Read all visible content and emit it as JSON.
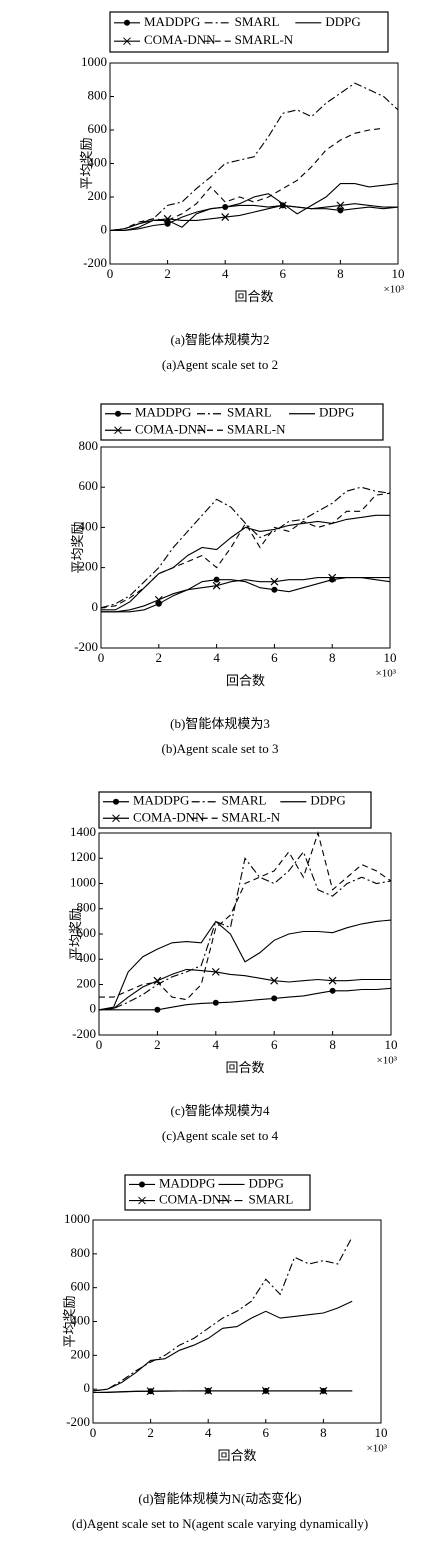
{
  "chart_data": [
    {
      "type": "line",
      "y_label": "平均奖励",
      "x_label": "回合数",
      "x_unit": "×10³",
      "caption": "(a)智能体规模为2",
      "caption_en": "(a)Agent scale set to 2",
      "x": [
        0,
        0.5,
        1,
        1.5,
        2,
        2.5,
        3,
        3.5,
        4,
        4.5,
        5,
        5.5,
        6,
        6.5,
        7,
        7.5,
        8,
        8.5,
        9,
        9.5,
        10
      ],
      "xlim": [
        0,
        10
      ],
      "xticks": [
        0,
        2,
        4,
        6,
        8,
        10
      ],
      "ylim": [
        -200,
        1000
      ],
      "yticks": [
        -200,
        0,
        200,
        400,
        600,
        800,
        1000
      ],
      "series": [
        {
          "name": "MADDPG",
          "color": "#000000",
          "dash": "solid",
          "marker": "circle",
          "values": [
            0,
            0,
            10,
            30,
            40,
            80,
            110,
            130,
            140,
            150,
            150,
            140,
            150,
            140,
            130,
            130,
            120,
            130,
            140,
            130,
            140
          ]
        },
        {
          "name": "SMARL",
          "color": "#000000",
          "dash": "dashdot",
          "marker": "none",
          "values": [
            0,
            10,
            40,
            70,
            150,
            170,
            250,
            320,
            400,
            420,
            440,
            560,
            700,
            720,
            680,
            760,
            820,
            880,
            840,
            800,
            720
          ]
        },
        {
          "name": "DDPG",
          "color": "#000000",
          "dash": "solid",
          "marker": "none",
          "values": [
            0,
            0,
            20,
            60,
            60,
            20,
            100,
            130,
            140,
            160,
            200,
            220,
            160,
            100,
            150,
            200,
            280,
            280,
            260,
            270,
            280
          ]
        },
        {
          "name": "COMA-DNN",
          "color": "#000000",
          "dash": "solid",
          "marker": "x",
          "values": [
            0,
            10,
            40,
            60,
            70,
            60,
            60,
            70,
            80,
            90,
            110,
            130,
            150,
            140,
            130,
            140,
            150,
            160,
            150,
            140,
            140
          ]
        },
        {
          "name": "SMARL-N",
          "color": "#000000",
          "dash": "dash",
          "marker": "none",
          "values": [
            0,
            10,
            50,
            70,
            60,
            100,
            160,
            260,
            170,
            200,
            170,
            200,
            250,
            300,
            380,
            480,
            540,
            580,
            600,
            610,
            null
          ]
        }
      ]
    },
    {
      "type": "line",
      "y_label": "平均奖励",
      "x_label": "回合数",
      "x_unit": "×10³",
      "caption": "(b)智能体规模为3",
      "caption_en": "(b)Agent scale set to 3",
      "x": [
        0,
        0.5,
        1,
        1.5,
        2,
        2.5,
        3,
        3.5,
        4,
        4.5,
        5,
        5.5,
        6,
        6.5,
        7,
        7.5,
        8,
        8.5,
        9,
        9.5,
        10
      ],
      "xlim": [
        0,
        10
      ],
      "xticks": [
        0,
        2,
        4,
        6,
        8,
        10
      ],
      "ylim": [
        -200,
        800
      ],
      "yticks": [
        -200,
        0,
        200,
        400,
        600,
        800
      ],
      "series": [
        {
          "name": "MADDPG",
          "color": "#000000",
          "dash": "solid",
          "marker": "circle",
          "values": [
            -20,
            -20,
            -20,
            -10,
            20,
            60,
            90,
            130,
            140,
            140,
            130,
            100,
            90,
            80,
            100,
            120,
            140,
            150,
            150,
            140,
            130
          ]
        },
        {
          "name": "SMARL",
          "color": "#000000",
          "dash": "dashdot",
          "marker": "none",
          "values": [
            0,
            20,
            60,
            130,
            200,
            300,
            380,
            460,
            540,
            500,
            420,
            350,
            380,
            430,
            440,
            480,
            520,
            580,
            600,
            580,
            570
          ]
        },
        {
          "name": "DDPG",
          "color": "#000000",
          "dash": "solid",
          "marker": "none",
          "values": [
            -10,
            -10,
            30,
            100,
            170,
            200,
            260,
            300,
            290,
            350,
            400,
            380,
            390,
            410,
            420,
            430,
            420,
            440,
            450,
            460,
            460
          ]
        },
        {
          "name": "COMA-DNN",
          "color": "#000000",
          "dash": "solid",
          "marker": "x",
          "values": [
            -20,
            -20,
            -10,
            10,
            40,
            70,
            90,
            100,
            110,
            130,
            140,
            130,
            130,
            140,
            140,
            150,
            150,
            150,
            150,
            150,
            150
          ]
        },
        {
          "name": "SMARL-N",
          "color": "#000000",
          "dash": "dash",
          "marker": "none",
          "values": [
            0,
            10,
            50,
            100,
            170,
            200,
            230,
            260,
            200,
            300,
            420,
            300,
            400,
            380,
            430,
            400,
            420,
            480,
            480,
            560,
            570
          ]
        }
      ]
    },
    {
      "type": "line",
      "y_label": "平均奖励",
      "x_label": "回合数",
      "x_unit": "×10³",
      "caption": "(c)智能体规模为4",
      "caption_en": "(c)Agent scale set to 4",
      "x": [
        0,
        0.5,
        1,
        1.5,
        2,
        2.5,
        3,
        3.5,
        4,
        4.5,
        5,
        5.5,
        6,
        6.5,
        7,
        7.5,
        8,
        8.5,
        9,
        9.5,
        10
      ],
      "xlim": [
        0,
        10
      ],
      "xticks": [
        0,
        2,
        4,
        6,
        8,
        10
      ],
      "ylim": [
        -200,
        1400
      ],
      "yticks": [
        -200,
        0,
        200,
        400,
        600,
        800,
        1000,
        1200,
        1400
      ],
      "series": [
        {
          "name": "MADDPG",
          "color": "#000000",
          "dash": "solid",
          "marker": "circle",
          "values": [
            0,
            0,
            0,
            0,
            0,
            20,
            40,
            50,
            55,
            60,
            70,
            80,
            90,
            100,
            110,
            130,
            150,
            150,
            160,
            160,
            170
          ]
        },
        {
          "name": "SMARL",
          "color": "#000000",
          "dash": "dashdot",
          "marker": "none",
          "values": [
            0,
            10,
            60,
            120,
            200,
            260,
            300,
            350,
            700,
            650,
            1200,
            1050,
            1000,
            1100,
            1250,
            950,
            900,
            1000,
            1050,
            1000,
            1020
          ]
        },
        {
          "name": "DDPG",
          "color": "#000000",
          "dash": "solid",
          "marker": "none",
          "values": [
            0,
            20,
            300,
            420,
            480,
            530,
            540,
            530,
            700,
            600,
            380,
            450,
            550,
            600,
            620,
            620,
            610,
            650,
            680,
            700,
            710
          ]
        },
        {
          "name": "COMA-DNN",
          "color": "#000000",
          "dash": "solid",
          "marker": "x",
          "values": [
            0,
            10,
            100,
            180,
            230,
            280,
            320,
            310,
            300,
            280,
            270,
            250,
            230,
            220,
            230,
            240,
            230,
            230,
            240,
            240,
            240
          ]
        },
        {
          "name": "SMARL-N",
          "color": "#000000",
          "dash": "dash",
          "marker": "none",
          "values": [
            100,
            100,
            150,
            200,
            220,
            100,
            80,
            200,
            650,
            750,
            1000,
            1050,
            1100,
            1250,
            1050,
            1400,
            950,
            1050,
            1150,
            1100,
            1020
          ]
        }
      ]
    },
    {
      "type": "line",
      "y_label": "平均奖励",
      "x_label": "回合数",
      "x_unit": "×10³",
      "caption": "(d)智能体规模为N(动态变化)",
      "caption_en": "(d)Agent scale set to N(agent scale varying dynamically)",
      "x": [
        0,
        0.5,
        1,
        1.5,
        2,
        2.5,
        3,
        3.5,
        4,
        4.5,
        5,
        5.5,
        6,
        6.5,
        7,
        7.5,
        8,
        8.5,
        9
      ],
      "xlim": [
        0,
        10
      ],
      "xticks": [
        0,
        2,
        4,
        6,
        8,
        10
      ],
      "ylim": [
        -200,
        1000
      ],
      "yticks": [
        -200,
        0,
        200,
        400,
        600,
        800,
        1000
      ],
      "series": [
        {
          "name": "MADDPG",
          "color": "#000000",
          "dash": "solid",
          "marker": "circle",
          "values": [
            -20,
            -18,
            -15,
            -12,
            -12,
            -10,
            -10,
            -10,
            -10,
            -10,
            -10,
            -10,
            -10,
            -10,
            -10,
            -10,
            -10,
            -10,
            -10
          ]
        },
        {
          "name": "DDPG",
          "color": "#000000",
          "dash": "solid",
          "marker": "none",
          "values": [
            -10,
            0,
            40,
            100,
            170,
            180,
            230,
            260,
            300,
            360,
            370,
            420,
            460,
            420,
            430,
            440,
            450,
            480,
            520
          ]
        },
        {
          "name": "COMA-DNN",
          "color": "#000000",
          "dash": "solid",
          "marker": "x",
          "values": [
            -20,
            -20,
            -16,
            -14,
            -12,
            -12,
            -11,
            -10,
            -10,
            -10,
            -10,
            -10,
            -10,
            -10,
            -10,
            -10,
            -10,
            -10,
            -10
          ]
        },
        {
          "name": "SMARL",
          "color": "#000000",
          "dash": "dashdot",
          "marker": "none",
          "values": [
            -10,
            0,
            50,
            110,
            160,
            200,
            260,
            300,
            360,
            420,
            460,
            520,
            650,
            560,
            780,
            740,
            760,
            740,
            900
          ]
        }
      ]
    }
  ]
}
